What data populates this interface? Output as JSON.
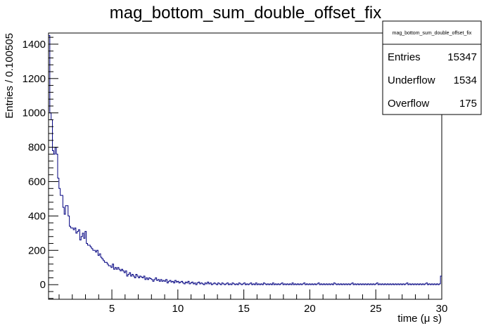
{
  "chart_data": {
    "type": "histogram",
    "title": "mag_bottom_sum_double_offset_fix",
    "xlabel": "time (μ s)",
    "ylabel": "Entries / 0.100505",
    "xlim": [
      0.2,
      30
    ],
    "ylim": [
      -85,
      1465
    ],
    "x_ticks": [
      5,
      10,
      15,
      20,
      25,
      30
    ],
    "y_ticks": [
      0,
      200,
      400,
      600,
      800,
      1000,
      1200,
      1400
    ],
    "bin_width": 0.100505,
    "line_color": "#000080",
    "grid": false,
    "legend": "none",
    "stats_box": {
      "title": "mag_bottom_sum_double_offset_fix",
      "entries_label": "Entries",
      "entries_value": "15347",
      "underflow_label": "Underflow",
      "underflow_value": "1534",
      "overflow_label": "Overflow",
      "overflow_value": "175"
    },
    "series": [
      {
        "values": [
          1450,
          1000,
          960,
          780,
          760,
          800,
          760,
          620,
          560,
          520,
          520,
          450,
          410,
          460,
          460,
          400,
          340,
          330,
          330,
          320,
          330,
          300,
          310,
          320,
          260,
          280,
          300,
          270,
          310,
          240,
          230,
          230,
          220,
          210,
          200,
          200,
          190,
          200,
          170,
          180,
          160,
          150,
          140,
          130,
          130,
          120,
          110,
          110,
          100,
          120,
          90,
          100,
          90,
          100,
          90,
          80,
          90,
          80,
          70,
          80,
          50,
          60,
          70,
          50,
          60,
          50,
          40,
          60,
          50,
          40,
          50,
          45,
          40,
          50,
          30,
          40,
          30,
          40,
          35,
          30,
          20,
          30,
          40,
          25,
          30,
          20,
          30,
          20,
          25,
          20,
          30,
          10,
          20,
          25,
          15,
          20,
          10,
          25,
          15,
          20,
          10,
          15,
          20,
          10,
          5,
          15,
          10,
          20,
          5,
          10,
          15,
          5,
          10,
          0,
          10,
          15,
          5,
          10,
          5,
          0,
          10,
          5,
          15,
          5,
          10,
          0,
          5,
          10,
          5,
          0,
          10,
          5,
          0,
          10,
          5,
          0,
          5,
          10,
          0,
          5,
          0,
          10,
          5,
          0,
          5,
          0,
          10,
          5,
          0,
          5,
          10,
          0,
          5,
          0,
          5,
          10,
          0,
          5,
          0,
          10,
          0,
          5,
          0,
          5,
          0,
          10,
          5,
          0,
          5,
          0,
          5,
          0,
          10,
          0,
          5,
          0,
          5,
          0,
          5,
          10,
          0,
          5,
          0,
          5,
          0,
          5,
          0,
          10,
          0,
          5,
          0,
          5,
          0,
          5,
          0,
          5,
          10,
          0,
          5,
          0,
          5,
          0,
          5,
          0,
          5,
          0,
          5,
          10,
          0,
          5,
          0,
          5,
          0,
          5,
          0,
          5,
          0,
          5,
          0,
          10,
          5,
          0,
          5,
          0,
          5,
          0,
          5,
          0,
          5,
          0,
          5,
          0,
          5,
          10,
          0,
          5,
          0,
          5,
          0,
          5,
          0,
          5,
          0,
          5,
          0,
          5,
          0,
          5,
          0,
          5,
          0,
          5,
          10,
          0,
          5,
          0,
          5,
          0,
          5,
          0,
          5,
          0,
          5,
          0,
          5,
          0,
          5,
          0,
          5,
          0,
          5,
          0,
          5,
          0,
          5,
          10,
          0,
          5,
          0,
          5,
          0,
          5,
          0,
          5,
          0,
          5,
          0,
          5,
          0,
          5,
          10,
          0,
          5,
          0,
          5,
          0,
          5,
          0,
          5,
          0,
          5,
          50
        ]
      }
    ]
  }
}
